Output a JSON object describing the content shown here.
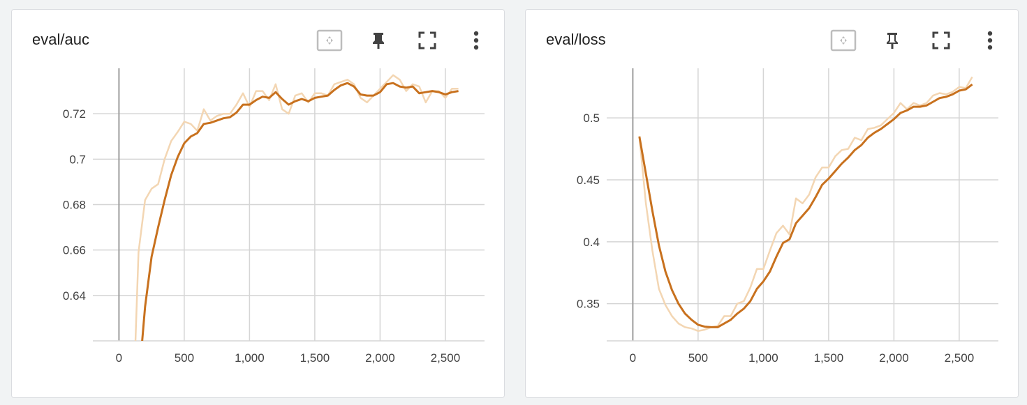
{
  "colors": {
    "line": "#c8711e",
    "raw": "#f3d6b3",
    "grid": "#d5d5d5",
    "zero_axis": "#9e9e9e"
  },
  "cards": [
    {
      "title": "eval/auc",
      "icons": [
        "fit-domain-icon",
        "pin-icon",
        "fullscreen-icon",
        "more-vert-icon"
      ]
    },
    {
      "title": "eval/loss",
      "icons": [
        "fit-domain-icon",
        "pin-outline-icon",
        "fullscreen-icon",
        "more-vert-icon"
      ]
    }
  ],
  "chart_data": [
    {
      "type": "line",
      "title": "eval/auc",
      "xlabel": "",
      "ylabel": "",
      "xlim": [
        -200,
        2800
      ],
      "ylim": [
        0.62,
        0.74
      ],
      "x_ticks": [
        0,
        500,
        1000,
        1500,
        2000,
        2500
      ],
      "x_tick_labels": [
        "0",
        "500",
        "1,000",
        "1,500",
        "2,000",
        "2,500"
      ],
      "y_ticks": [
        0.64,
        0.66,
        0.68,
        0.7,
        0.72
      ],
      "y_tick_labels": [
        "0.64",
        "0.66",
        "0.68",
        "0.7",
        "0.72"
      ],
      "grid": true,
      "series": [
        {
          "role": "raw",
          "x": [
            125,
            150,
            200,
            250,
            300,
            350,
            400,
            450,
            500,
            550,
            600,
            650,
            700,
            750,
            800,
            850,
            900,
            950,
            1000,
            1050,
            1100,
            1150,
            1200,
            1250,
            1300,
            1350,
            1400,
            1450,
            1500,
            1550,
            1600,
            1650,
            1700,
            1750,
            1800,
            1850,
            1900,
            1950,
            2000,
            2050,
            2100,
            2150,
            2200,
            2250,
            2300,
            2350,
            2400,
            2450,
            2500,
            2550,
            2600
          ],
          "y": [
            0.618,
            0.659,
            0.682,
            0.687,
            0.689,
            0.7,
            0.708,
            0.712,
            0.7165,
            0.7155,
            0.7125,
            0.722,
            0.717,
            0.719,
            0.72,
            0.72,
            0.724,
            0.729,
            0.723,
            0.73,
            0.73,
            0.726,
            0.733,
            0.722,
            0.72,
            0.728,
            0.729,
            0.725,
            0.729,
            0.729,
            0.728,
            0.733,
            0.734,
            0.735,
            0.733,
            0.727,
            0.725,
            0.728,
            0.731,
            0.734,
            0.737,
            0.735,
            0.73,
            0.733,
            0.732,
            0.725,
            0.73,
            0.73,
            0.727,
            0.731,
            0.731
          ]
        },
        {
          "role": "smoothed",
          "x": [
            175,
            200,
            250,
            300,
            350,
            400,
            450,
            500,
            550,
            600,
            650,
            700,
            750,
            800,
            850,
            900,
            950,
            1000,
            1050,
            1100,
            1150,
            1200,
            1250,
            1300,
            1350,
            1400,
            1450,
            1500,
            1550,
            1600,
            1650,
            1700,
            1750,
            1800,
            1850,
            1900,
            1950,
            2000,
            2050,
            2100,
            2150,
            2200,
            2250,
            2300,
            2350,
            2400,
            2450,
            2500,
            2550,
            2600
          ],
          "y": [
            0.618,
            0.635,
            0.657,
            0.67,
            0.682,
            0.693,
            0.701,
            0.707,
            0.71,
            0.7115,
            0.7155,
            0.716,
            0.717,
            0.718,
            0.7185,
            0.7205,
            0.724,
            0.724,
            0.726,
            0.7275,
            0.727,
            0.7295,
            0.7265,
            0.724,
            0.7255,
            0.7265,
            0.7255,
            0.727,
            0.7275,
            0.728,
            0.7305,
            0.7325,
            0.7335,
            0.732,
            0.7285,
            0.728,
            0.728,
            0.7295,
            0.733,
            0.7335,
            0.732,
            0.7315,
            0.732,
            0.729,
            0.7295,
            0.73,
            0.7295,
            0.7285,
            0.7295,
            0.73
          ]
        }
      ]
    },
    {
      "type": "line",
      "title": "eval/loss",
      "xlabel": "",
      "ylabel": "",
      "xlim": [
        -200,
        2800
      ],
      "ylim": [
        0.32,
        0.54
      ],
      "x_ticks": [
        0,
        500,
        1000,
        1500,
        2000,
        2500
      ],
      "x_tick_labels": [
        "0",
        "500",
        "1,000",
        "1,500",
        "2,000",
        "2,500"
      ],
      "y_ticks": [
        0.35,
        0.4,
        0.45,
        0.5
      ],
      "y_tick_labels": [
        "0.35",
        "0.4",
        "0.45",
        "0.5"
      ],
      "grid": true,
      "series": [
        {
          "role": "raw",
          "x": [
            50,
            100,
            150,
            200,
            250,
            300,
            350,
            400,
            450,
            500,
            550,
            600,
            650,
            700,
            750,
            800,
            850,
            900,
            950,
            1000,
            1050,
            1100,
            1150,
            1200,
            1250,
            1300,
            1350,
            1400,
            1450,
            1500,
            1550,
            1600,
            1650,
            1700,
            1750,
            1800,
            1850,
            1900,
            1950,
            2000,
            2050,
            2100,
            2150,
            2200,
            2250,
            2300,
            2350,
            2400,
            2450,
            2500,
            2550,
            2600
          ],
          "y": [
            0.485,
            0.431,
            0.393,
            0.362,
            0.349,
            0.34,
            0.334,
            0.331,
            0.33,
            0.328,
            0.329,
            0.331,
            0.332,
            0.34,
            0.34,
            0.35,
            0.352,
            0.363,
            0.378,
            0.378,
            0.393,
            0.407,
            0.413,
            0.406,
            0.435,
            0.431,
            0.438,
            0.452,
            0.46,
            0.46,
            0.469,
            0.474,
            0.475,
            0.484,
            0.482,
            0.491,
            0.492,
            0.494,
            0.499,
            0.504,
            0.512,
            0.507,
            0.512,
            0.51,
            0.512,
            0.518,
            0.52,
            0.519,
            0.521,
            0.525,
            0.524,
            0.533
          ]
        },
        {
          "role": "smoothed",
          "x": [
            50,
            100,
            150,
            200,
            250,
            300,
            350,
            400,
            450,
            500,
            550,
            600,
            650,
            700,
            750,
            800,
            850,
            900,
            950,
            1000,
            1050,
            1100,
            1150,
            1200,
            1250,
            1300,
            1350,
            1400,
            1450,
            1500,
            1550,
            1600,
            1650,
            1700,
            1750,
            1800,
            1850,
            1900,
            1950,
            2000,
            2050,
            2100,
            2150,
            2200,
            2250,
            2300,
            2350,
            2400,
            2450,
            2500,
            2550,
            2600
          ],
          "y": [
            0.485,
            0.455,
            0.425,
            0.397,
            0.376,
            0.361,
            0.35,
            0.342,
            0.337,
            0.333,
            0.3315,
            0.331,
            0.331,
            0.334,
            0.337,
            0.342,
            0.346,
            0.352,
            0.362,
            0.368,
            0.376,
            0.388,
            0.399,
            0.402,
            0.415,
            0.421,
            0.427,
            0.436,
            0.446,
            0.451,
            0.457,
            0.463,
            0.468,
            0.474,
            0.478,
            0.484,
            0.488,
            0.491,
            0.495,
            0.499,
            0.504,
            0.506,
            0.509,
            0.509,
            0.51,
            0.513,
            0.516,
            0.517,
            0.519,
            0.522,
            0.523,
            0.527
          ]
        }
      ]
    }
  ]
}
